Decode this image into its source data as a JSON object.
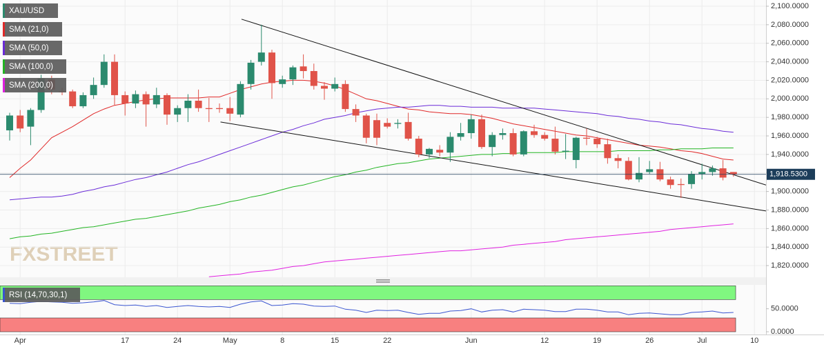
{
  "chart_data": [
    {
      "type": "candlestick",
      "name": "XAU/USD",
      "categories": [
        null,
        "Apr",
        null,
        null,
        null,
        null,
        null,
        null,
        null,
        null,
        null,
        "17",
        null,
        null,
        null,
        null,
        "24",
        null,
        null,
        null,
        null,
        "May",
        null,
        null,
        null,
        null,
        "8",
        null,
        null,
        null,
        null,
        "15",
        null,
        null,
        null,
        null,
        "22",
        null,
        null,
        null,
        null,
        null,
        null,
        null,
        "Jun",
        null,
        null,
        null,
        null,
        null,
        null,
        "12",
        null,
        null,
        null,
        null,
        "19",
        null,
        null,
        null,
        null,
        "26",
        null,
        null,
        null,
        null,
        "Jul",
        null,
        null,
        null,
        null,
        "10"
      ],
      "open": [
        1966,
        1982,
        1970,
        1988,
        2021,
        2008,
        2008,
        1992,
        2004,
        2015,
        2040,
        2004,
        1995,
        2005,
        1994,
        2004,
        1983,
        1990,
        1998,
        1990,
        1990,
        1990,
        1983,
        2016,
        2040,
        2050,
        2016,
        2021,
        2035,
        2030,
        2014,
        2011,
        2016,
        1989,
        1982,
        1977,
        1974,
        1973,
        1975,
        1957,
        1940,
        1945,
        1942,
        1959,
        1963,
        1978,
        1948,
        1961,
        1963,
        1940,
        1965,
        1961,
        1957,
        1943,
        1934,
        1958,
        1957,
        1951,
        1936,
        1933,
        1913,
        1921,
        1924,
        1913,
        1908,
        1908,
        1919,
        1921,
        1925,
        1921,
        null,
        null
      ],
      "high": [
        1985,
        1988,
        1990,
        2026,
        2025,
        2012,
        2010,
        2007,
        2023,
        2048,
        2048,
        2008,
        2009,
        2008,
        2012,
        2006,
        1993,
        2005,
        2010,
        2001,
        1995,
        2002,
        2019,
        2042,
        2080,
        2053,
        2025,
        2036,
        2048,
        2038,
        2018,
        2023,
        2020,
        1994,
        1984,
        1984,
        1979,
        1978,
        1985,
        1960,
        1947,
        1950,
        1964,
        1974,
        1983,
        1983,
        1964,
        1968,
        1968,
        1966,
        1972,
        1964,
        1970,
        1962,
        1959,
        1968,
        1959,
        1957,
        1940,
        1937,
        1937,
        1933,
        1932,
        1916,
        1914,
        1922,
        1930,
        1928,
        1934,
        1921,
        null,
        null
      ],
      "low": [
        1955,
        1964,
        1950,
        1985,
        2005,
        2004,
        1990,
        1990,
        2000,
        2012,
        1993,
        1982,
        1990,
        1970,
        1990,
        1972,
        1975,
        1975,
        1986,
        1975,
        1985,
        1976,
        1980,
        2010,
        2036,
        2000,
        2012,
        2015,
        2022,
        2010,
        1999,
        2008,
        1986,
        1975,
        1952,
        1950,
        1968,
        1968,
        1955,
        1937,
        1936,
        1938,
        1932,
        1955,
        1957,
        1946,
        1938,
        1956,
        1938,
        1938,
        1958,
        1955,
        1940,
        1935,
        1925,
        1950,
        1947,
        1930,
        1925,
        1912,
        1910,
        1919,
        1911,
        1903,
        1893,
        1903,
        1913,
        1917,
        1912,
        1916,
        null,
        null
      ],
      "close": [
        1982,
        1968,
        1988,
        2022,
        2010,
        2007,
        1992,
        2004,
        2015,
        2040,
        2004,
        1995,
        2005,
        1994,
        2004,
        1983,
        1990,
        1998,
        1990,
        1989,
        1989,
        1984,
        2016,
        2039,
        2050,
        2017,
        2021,
        2034,
        2030,
        2014,
        2011,
        2016,
        1989,
        1982,
        1958,
        1958,
        1970,
        1974,
        1957,
        1940,
        1946,
        1942,
        1959,
        1963,
        1978,
        1948,
        1961,
        1963,
        1940,
        1965,
        1961,
        1957,
        1943,
        1944,
        1958,
        1957,
        1951,
        1936,
        1933,
        1913,
        1920,
        1924,
        1913,
        1907,
        1907,
        1919,
        1921,
        1925,
        1915,
        1918.53,
        null,
        null
      ],
      "up_color": "#2b8a6e",
      "down_color": "#e05349",
      "series": [
        {
          "name": "SMA (21,0)",
          "color": "#e02828",
          "values": [
            1915,
            1925,
            1934,
            1946,
            1958,
            1964,
            1970,
            1977,
            1984,
            1989,
            1993,
            1995,
            1997,
            1999,
            2000,
            2001,
            2001,
            2001,
            2001,
            2002,
            2002,
            2006,
            2010,
            2013,
            2016,
            2018,
            2019,
            2020,
            2020,
            2019,
            2017,
            2014,
            2010,
            2005,
            2000,
            1998,
            1995,
            1992,
            1989,
            1988,
            1986,
            1985,
            1984,
            1984,
            1983,
            1981,
            1979,
            1976,
            1973,
            1971,
            1969,
            1967,
            1965,
            1963,
            1961,
            1960,
            1958,
            1956,
            1954,
            1952,
            1950,
            1949,
            1948,
            1946,
            1944,
            1943,
            1941,
            1938,
            1935,
            1934,
            null,
            null
          ]
        },
        {
          "name": "SMA (50,0)",
          "color": "#6a2bd8",
          "values": [
            1891,
            1892,
            1893,
            1894,
            1894,
            1895,
            1897,
            1900,
            1902,
            1905,
            1907,
            1910,
            1913,
            1915,
            1918,
            1921,
            1925,
            1929,
            1932,
            1936,
            1940,
            1944,
            1948,
            1952,
            1956,
            1960,
            1964,
            1967,
            1971,
            1974,
            1978,
            1980,
            1982,
            1985,
            1987,
            1989,
            1990,
            1991,
            1991,
            1992,
            1993,
            1993,
            1992,
            1992,
            1991,
            1991,
            1991,
            1990,
            1990,
            1990,
            1990,
            1989,
            1988,
            1987,
            1986,
            1985,
            1984,
            1982,
            1981,
            1979,
            1978,
            1976,
            1975,
            1973,
            1972,
            1970,
            1968,
            1967,
            1965,
            1964,
            null,
            null
          ]
        },
        {
          "name": "SMA (100,0)",
          "color": "#22b422",
          "values": [
            1849,
            1851,
            1852,
            1854,
            1855,
            1857,
            1859,
            1861,
            1862,
            1864,
            1866,
            1868,
            1870,
            1871,
            1873,
            1875,
            1877,
            1879,
            1882,
            1884,
            1886,
            1889,
            1891,
            1894,
            1896,
            1899,
            1902,
            1905,
            1907,
            1910,
            1913,
            1916,
            1918,
            1921,
            1923,
            1926,
            1928,
            1930,
            1931,
            1933,
            1935,
            1936,
            1937,
            1938,
            1939,
            1940,
            1940,
            1941,
            1941,
            1942,
            1942,
            1942,
            1942,
            1943,
            1943,
            1943,
            1943,
            1943,
            1944,
            1944,
            1944,
            1944,
            1945,
            1945,
            1946,
            1946,
            1946,
            1947,
            1947,
            1947,
            null,
            null
          ]
        },
        {
          "name": "SMA (200,0)",
          "color": "#e020e0",
          "values": [
            null,
            null,
            null,
            null,
            null,
            null,
            null,
            null,
            null,
            null,
            null,
            null,
            null,
            null,
            null,
            null,
            null,
            null,
            null,
            1808,
            1809,
            1810,
            1811,
            1813,
            1814,
            1815,
            1817,
            1819,
            1820,
            1822,
            1824,
            1825,
            1826,
            1827,
            1828,
            1829,
            1830,
            1831,
            1832,
            1833,
            1834,
            1835,
            1836,
            1836,
            1837,
            1838,
            1839,
            1840,
            1842,
            1843,
            1844,
            1845,
            1846,
            1848,
            1849,
            1850,
            1851,
            1852,
            1853,
            1854,
            1855,
            1856,
            1857,
            1859,
            1860,
            1861,
            1862,
            1863,
            1864,
            1865,
            null,
            null
          ]
        }
      ],
      "ylim": [
        1807.4,
        2106.7
      ],
      "yticks": [
        {
          "value": 1820,
          "label": "1,820.0000"
        },
        {
          "value": 1840,
          "label": "1,840.0000"
        },
        {
          "value": 1860,
          "label": "1,860.0000"
        },
        {
          "value": 1880,
          "label": "1,880.0000"
        },
        {
          "value": 1900,
          "label": "1,900.0000"
        },
        {
          "value": 1920,
          "label": "1,920.0000"
        },
        {
          "value": 1940,
          "label": "1,940.0000"
        },
        {
          "value": 1960,
          "label": "1,960.0000"
        },
        {
          "value": 1980,
          "label": "1,980.0000"
        },
        {
          "value": 2000,
          "label": "2,000.0000"
        },
        {
          "value": 2020,
          "label": "2,020.0000"
        },
        {
          "value": 2040,
          "label": "2,040.0000"
        },
        {
          "value": 2060,
          "label": "2,060.0000"
        },
        {
          "value": 2080,
          "label": "2,080.0000"
        },
        {
          "value": 2100,
          "label": "2,100.0000"
        }
      ],
      "grid": true,
      "last_price": 1918.53,
      "last_price_label": "1,918.5300",
      "trendlines": [
        {
          "start": [
            22.1,
            2086
          ],
          "end": [
            72.1,
            1907
          ]
        },
        {
          "start": [
            20.1,
            1975
          ],
          "end": [
            72.1,
            1879
          ]
        }
      ],
      "watermark": "FXSTREET"
    },
    {
      "type": "line",
      "name": "RSI (14,70,30,1)",
      "color": "#3a55d0",
      "values": [
        62,
        61,
        64,
        66,
        65,
        64,
        62,
        63,
        65,
        68,
        59,
        57,
        58,
        55,
        57,
        53,
        55,
        57,
        55,
        54,
        55,
        53,
        60,
        65,
        67,
        57,
        58,
        61,
        60,
        56,
        55,
        56,
        49,
        47,
        42,
        47,
        46,
        47,
        42,
        38,
        40,
        40,
        45,
        46,
        50,
        43,
        47,
        48,
        43,
        49,
        48,
        47,
        44,
        44,
        49,
        49,
        47,
        43,
        43,
        37,
        40,
        41,
        39,
        37,
        37,
        42,
        43,
        45,
        41,
        42,
        null,
        null
      ],
      "ylim": [
        -6,
        102
      ],
      "yticks": [
        {
          "value": 0,
          "label": "0.0000"
        },
        {
          "value": 50,
          "label": "50.0000"
        }
      ],
      "bands": [
        {
          "range": [
            70,
            100
          ],
          "color": "#80f780"
        },
        {
          "range": [
            0,
            30
          ],
          "color": "#f88080"
        }
      ]
    }
  ]
}
